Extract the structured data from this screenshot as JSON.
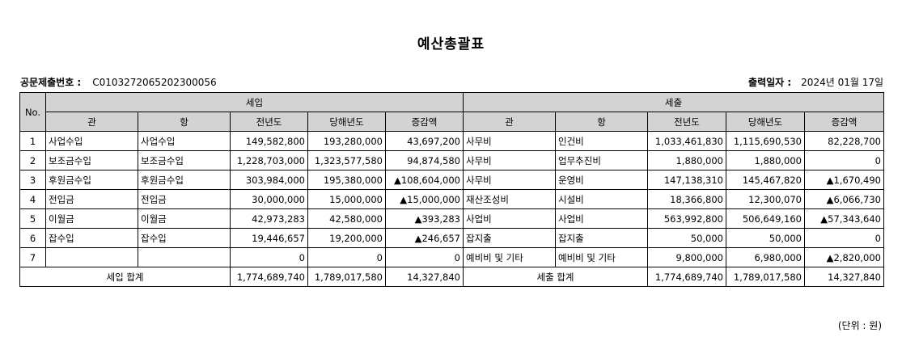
{
  "title": "예산총괄표",
  "submission": {
    "label": "공문제출번호 :",
    "value": "C0103272065202300056"
  },
  "print_date": {
    "label": "출력일자 :",
    "value": "2024년 01월 17일"
  },
  "table": {
    "no_header": "No.",
    "revenue_header": "세입",
    "expense_header": "세출",
    "sub_headers": [
      "관",
      "항",
      "전년도",
      "당해년도",
      "증감액",
      "관",
      "항",
      "전년도",
      "당해년도",
      "증감액"
    ],
    "rows": [
      {
        "no": "1",
        "r_kwan": "사업수입",
        "r_hang": "사업수입",
        "r_prev": "149,582,800",
        "r_curr": "193,280,000",
        "r_diff": "43,697,200",
        "e_kwan": "사무비",
        "e_hang": "인건비",
        "e_prev": "1,033,461,830",
        "e_curr": "1,115,690,530",
        "e_diff": "82,228,700"
      },
      {
        "no": "2",
        "r_kwan": "보조금수입",
        "r_hang": "보조금수입",
        "r_prev": "1,228,703,000",
        "r_curr": "1,323,577,580",
        "r_diff": "94,874,580",
        "e_kwan": "사무비",
        "e_hang": "업무추진비",
        "e_prev": "1,880,000",
        "e_curr": "1,880,000",
        "e_diff": "0"
      },
      {
        "no": "3",
        "r_kwan": "후원금수입",
        "r_hang": "후원금수입",
        "r_prev": "303,984,000",
        "r_curr": "195,380,000",
        "r_diff": "▲108,604,000",
        "e_kwan": "사무비",
        "e_hang": "운영비",
        "e_prev": "147,138,310",
        "e_curr": "145,467,820",
        "e_diff": "▲1,670,490"
      },
      {
        "no": "4",
        "r_kwan": "전입금",
        "r_hang": "전입금",
        "r_prev": "30,000,000",
        "r_curr": "15,000,000",
        "r_diff": "▲15,000,000",
        "e_kwan": "재산조성비",
        "e_hang": "시설비",
        "e_prev": "18,366,800",
        "e_curr": "12,300,070",
        "e_diff": "▲6,066,730"
      },
      {
        "no": "5",
        "r_kwan": "이월금",
        "r_hang": "이월금",
        "r_prev": "42,973,283",
        "r_curr": "42,580,000",
        "r_diff": "▲393,283",
        "e_kwan": "사업비",
        "e_hang": "사업비",
        "e_prev": "563,992,800",
        "e_curr": "506,649,160",
        "e_diff": "▲57,343,640"
      },
      {
        "no": "6",
        "r_kwan": "잡수입",
        "r_hang": "잡수입",
        "r_prev": "19,446,657",
        "r_curr": "19,200,000",
        "r_diff": "▲246,657",
        "e_kwan": "잡지출",
        "e_hang": "잡지출",
        "e_prev": "50,000",
        "e_curr": "50,000",
        "e_diff": "0"
      },
      {
        "no": "7",
        "r_kwan": "",
        "r_hang": "",
        "r_prev": "0",
        "r_curr": "0",
        "r_diff": "0",
        "e_kwan": "예비비 및 기타",
        "e_hang": "예비비 및 기타",
        "e_prev": "9,800,000",
        "e_curr": "6,980,000",
        "e_diff": "▲2,820,000"
      }
    ],
    "totals": {
      "revenue_label": "세입 합계",
      "r_prev": "1,774,689,740",
      "r_curr": "1,789,017,580",
      "r_diff": "14,327,840",
      "expense_label": "세출 합계",
      "e_prev": "1,774,689,740",
      "e_curr": "1,789,017,580",
      "e_diff": "14,327,840"
    }
  },
  "unit_note": "(단위 : 원)"
}
